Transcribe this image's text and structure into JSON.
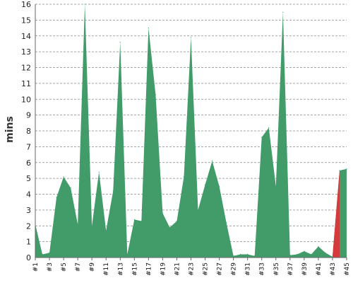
{
  "chart_data": {
    "type": "area",
    "xlabel": "",
    "ylabel": "mins",
    "ylim": [
      0,
      16
    ],
    "yticks": [
      0,
      1,
      2,
      3,
      4,
      5,
      6,
      7,
      8,
      9,
      10,
      11,
      12,
      13,
      14,
      15,
      16
    ],
    "grid": true,
    "colors": {
      "series": "#419c6a",
      "highlight": "#d63a3a",
      "grid": "#888888",
      "axis": "#666666"
    },
    "x": [
      "#1",
      "#2",
      "#3",
      "#4",
      "#5",
      "#6",
      "#7",
      "#8",
      "#9",
      "#10",
      "#11",
      "#12",
      "#13",
      "#14",
      "#15",
      "#16",
      "#17",
      "#18",
      "#19",
      "#20",
      "#21",
      "#22",
      "#23",
      "#24",
      "#25",
      "#26",
      "#27",
      "#28",
      "#29",
      "#30",
      "#31",
      "#32",
      "#33",
      "#34",
      "#35",
      "#36",
      "#37",
      "#38",
      "#39",
      "#40",
      "#41",
      "#42",
      "#43",
      "#44",
      "#45"
    ],
    "x_tick_labels": [
      "#1",
      "#3",
      "#5",
      "#7",
      "#9",
      "#11",
      "#13",
      "#15",
      "#17",
      "#19",
      "#21",
      "#23",
      "#25",
      "#27",
      "#29",
      "#31",
      "#33",
      "#35",
      "#37",
      "#39",
      "#41",
      "#43",
      "#45"
    ],
    "values": [
      2.1,
      0.2,
      0.3,
      3.8,
      5.1,
      4.4,
      2.1,
      16.3,
      2.0,
      5.4,
      1.7,
      4.2,
      13.6,
      0.2,
      2.4,
      2.3,
      14.5,
      10.3,
      2.8,
      1.9,
      2.3,
      5.1,
      13.9,
      3.0,
      4.6,
      6.1,
      4.5,
      2.2,
      0.1,
      0.2,
      0.2,
      0.1,
      7.6,
      8.2,
      4.5,
      15.5,
      0.15,
      0.2,
      0.4,
      0.2,
      0.7,
      0.3,
      0.05,
      5.5,
      5.6
    ],
    "highlight": {
      "from_index": 42,
      "to_index": 43
    }
  }
}
